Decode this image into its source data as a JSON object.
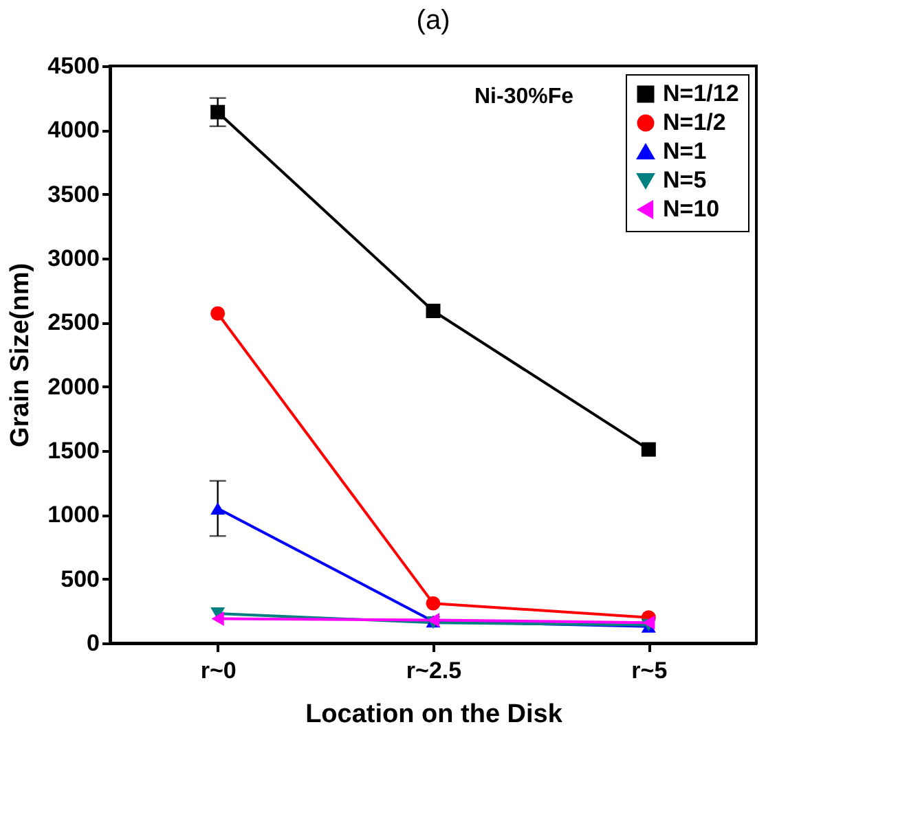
{
  "chart_data": {
    "type": "line",
    "title": "(a)",
    "xlabel": "Location on the Disk",
    "ylabel": "Grain Size(nm)",
    "categories": [
      "r~0",
      "r~2.5",
      "r~5"
    ],
    "ylim": [
      0,
      4500
    ],
    "yticks": [
      0,
      500,
      1000,
      1500,
      2000,
      2500,
      3000,
      3500,
      4000,
      4500
    ],
    "legend": "top right",
    "grid": false,
    "line_style": "solid",
    "annotations": [
      "Ni-30%Fe"
    ],
    "series": [
      {
        "name": "N=1/12",
        "color": "#000000",
        "marker": "square",
        "values": [
          4140,
          2590,
          1510
        ],
        "errors": [
          110,
          null,
          null
        ]
      },
      {
        "name": "N=1/2",
        "color": "#ff0000",
        "marker": "circle",
        "values": [
          2570,
          310,
          200
        ]
      },
      {
        "name": "N=1",
        "color": "#0000ff",
        "marker": "triangle",
        "values": [
          1050,
          170,
          130
        ],
        "errors": [
          215,
          null,
          null
        ]
      },
      {
        "name": "N=5",
        "color": "#008080",
        "marker": "triangle-down",
        "values": [
          230,
          160,
          140
        ]
      },
      {
        "name": "N=10",
        "color": "#ff00ff",
        "marker": "triangle-left",
        "values": [
          190,
          180,
          160
        ]
      }
    ]
  }
}
